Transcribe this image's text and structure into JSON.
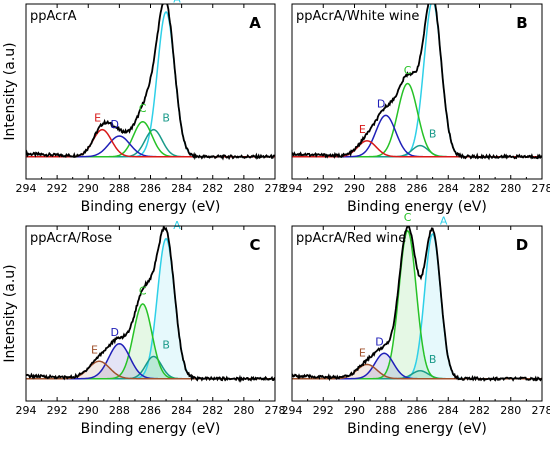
{
  "chart_data": [
    {
      "type": "line",
      "panel_letter": "A",
      "sample_label": "ppAcrA",
      "xlabel": "Binding energy (eV)",
      "ylabel": "Intensity (a.u)",
      "x_ticks": [
        294,
        292,
        290,
        288,
        286,
        284,
        282,
        280,
        278
      ],
      "x_reversed": true,
      "xlim": [
        294,
        278
      ],
      "ylim": [
        0,
        1.1
      ],
      "show_y_ticks": false,
      "series": [
        {
          "name": "A",
          "color": "#2fd0e8",
          "center": 285.0,
          "height": 0.91,
          "fwhm": 1.3
        },
        {
          "name": "B",
          "color": "#1a9a8a",
          "center": 285.8,
          "height": 0.17,
          "fwhm": 1.3
        },
        {
          "name": "C",
          "color": "#27c227",
          "center": 286.5,
          "height": 0.22,
          "fwhm": 1.4
        },
        {
          "name": "D",
          "color": "#2020b8",
          "center": 288.0,
          "height": 0.13,
          "fwhm": 1.6
        },
        {
          "name": "E",
          "color": "#d81818",
          "center": 289.1,
          "height": 0.17,
          "fwhm": 1.4
        }
      ],
      "envelope": {
        "name": "",
        "color": "#000000"
      },
      "fill_components": false
    },
    {
      "type": "line",
      "panel_letter": "B",
      "sample_label": "ppAcrA/White wine",
      "xlabel": "Binding energy (eV)",
      "ylabel": "",
      "x_ticks": [
        294,
        292,
        290,
        288,
        286,
        284,
        282,
        280,
        278
      ],
      "x_reversed": true,
      "xlim": [
        294,
        278
      ],
      "ylim": [
        0,
        1.1
      ],
      "show_y_ticks": false,
      "series": [
        {
          "name": "A",
          "color": "#2fd0e8",
          "center": 285.0,
          "height": 0.98,
          "fwhm": 1.3
        },
        {
          "name": "B",
          "color": "#1a9a8a",
          "center": 285.8,
          "height": 0.07,
          "fwhm": 1.2
        },
        {
          "name": "C",
          "color": "#27c227",
          "center": 286.6,
          "height": 0.46,
          "fwhm": 1.5
        },
        {
          "name": "D",
          "color": "#2020b8",
          "center": 288.0,
          "height": 0.26,
          "fwhm": 1.5
        },
        {
          "name": "E",
          "color": "#d81818",
          "center": 289.2,
          "height": 0.1,
          "fwhm": 1.4
        }
      ],
      "envelope": {
        "name": "",
        "color": "#000000"
      },
      "fill_components": false
    },
    {
      "type": "line",
      "panel_letter": "C",
      "sample_label": "ppAcrA/Rose",
      "xlabel": "Binding energy (eV)",
      "ylabel": "Intensity (a.u)",
      "x_ticks": [
        294,
        292,
        290,
        288,
        286,
        284,
        282,
        280,
        278
      ],
      "x_reversed": true,
      "xlim": [
        294,
        278
      ],
      "ylim": [
        0,
        1.1
      ],
      "show_y_ticks": false,
      "series": [
        {
          "name": "A",
          "color": "#2fd0e8",
          "center": 285.0,
          "height": 0.88,
          "fwhm": 1.3
        },
        {
          "name": "B",
          "color": "#1a9a8a",
          "center": 285.8,
          "height": 0.14,
          "fwhm": 1.2
        },
        {
          "name": "C",
          "color": "#27c227",
          "center": 286.5,
          "height": 0.47,
          "fwhm": 1.4
        },
        {
          "name": "D",
          "color": "#2020b8",
          "center": 288.0,
          "height": 0.22,
          "fwhm": 1.6
        },
        {
          "name": "E",
          "color": "#a0522d",
          "center": 289.3,
          "height": 0.11,
          "fwhm": 1.6
        }
      ],
      "envelope": {
        "name": "",
        "color": "#000000"
      },
      "fill_components": true
    },
    {
      "type": "line",
      "panel_letter": "D",
      "sample_label": "ppAcrA/Red wine",
      "xlabel": "Binding energy (eV)",
      "ylabel": "",
      "x_ticks": [
        294,
        292,
        290,
        288,
        286,
        284,
        282,
        280,
        278
      ],
      "x_reversed": true,
      "xlim": [
        294,
        278
      ],
      "ylim": [
        0,
        1.1
      ],
      "show_y_ticks": false,
      "series": [
        {
          "name": "A",
          "color": "#2fd0e8",
          "center": 285.0,
          "height": 0.91,
          "fwhm": 1.2
        },
        {
          "name": "B",
          "color": "#1a9a8a",
          "center": 285.8,
          "height": 0.05,
          "fwhm": 1.2
        },
        {
          "name": "C",
          "color": "#27c227",
          "center": 286.6,
          "height": 0.93,
          "fwhm": 1.3
        },
        {
          "name": "D",
          "color": "#2020b8",
          "center": 288.1,
          "height": 0.16,
          "fwhm": 1.4
        },
        {
          "name": "E",
          "color": "#a0522d",
          "center": 289.2,
          "height": 0.09,
          "fwhm": 1.5
        }
      ],
      "envelope": {
        "name": "",
        "color": "#000000"
      },
      "fill_components": true
    }
  ]
}
